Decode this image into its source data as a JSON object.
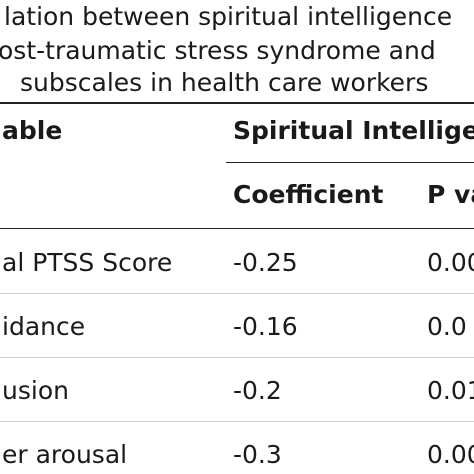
{
  "caption": {
    "line1": "lation between spiritual intelligence",
    "line2": "ost-traumatic stress syndrome and",
    "line3": "subscales in health care workers"
  },
  "table": {
    "header": {
      "variable": "able",
      "group": "Spiritual Intelligen",
      "coefficient": "Coefficient",
      "pvalue": "P va"
    },
    "rows": [
      {
        "variable": "al PTSS Score",
        "coefficient": "-0.25",
        "pvalue": "0.00"
      },
      {
        "variable": "idance",
        "coefficient": "-0.16",
        "pvalue": "0.0"
      },
      {
        "variable": "usion",
        "coefficient": "-0.2",
        "pvalue": "0.01"
      },
      {
        "variable": "er arousal",
        "coefficient": "-0.3",
        "pvalue": "0.00"
      }
    ]
  }
}
